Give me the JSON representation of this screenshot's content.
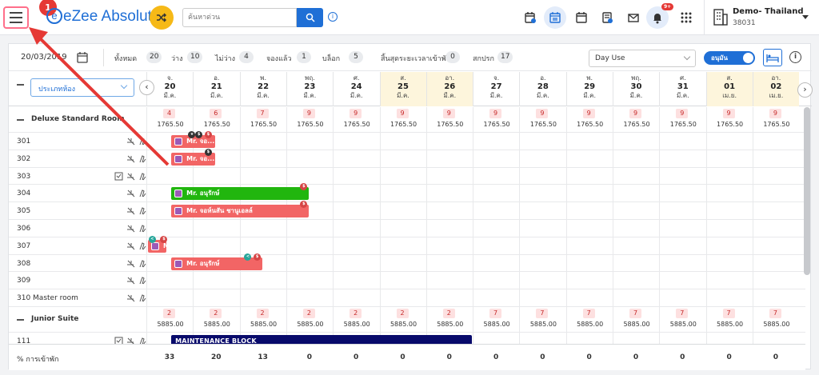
{
  "app": {
    "brand": "eZee Absolute",
    "search_placeholder": "ค้นหาด่วน",
    "step_badge": "1",
    "notif_count": "9+"
  },
  "hotel": {
    "name": "Demo- Thailand",
    "code": "38031"
  },
  "filters": {
    "date": "20/03/2019",
    "counts": [
      {
        "label": "ทั้งหมด",
        "value": "20"
      },
      {
        "label": "ว่าง",
        "value": "10"
      },
      {
        "label": "ไม่ว่าง",
        "value": "4"
      },
      {
        "label": "จองแล้ว",
        "value": "1"
      },
      {
        "label": "บล็อก",
        "value": "5"
      },
      {
        "label": "สิ้นสุดระยะเวลาเข้าพัก",
        "value": "0"
      },
      {
        "label": "สกปรก",
        "value": "17"
      }
    ],
    "day_use": "Day Use",
    "toggle_label": "อนุมัน"
  },
  "header": {
    "room_type_select": "ประเภทห้อง",
    "days": [
      {
        "dow": "จ.",
        "day": "20",
        "mon": "มี.ค.",
        "weekend": false
      },
      {
        "dow": "อ.",
        "day": "21",
        "mon": "มี.ค.",
        "weekend": false
      },
      {
        "dow": "พ.",
        "day": "22",
        "mon": "มี.ค.",
        "weekend": false
      },
      {
        "dow": "พฤ.",
        "day": "23",
        "mon": "มี.ค.",
        "weekend": false
      },
      {
        "dow": "ศ.",
        "day": "24",
        "mon": "มี.ค.",
        "weekend": false
      },
      {
        "dow": "ส.",
        "day": "25",
        "mon": "มี.ค.",
        "weekend": true
      },
      {
        "dow": "อา.",
        "day": "26",
        "mon": "มี.ค.",
        "weekend": true
      },
      {
        "dow": "จ.",
        "day": "27",
        "mon": "มี.ค.",
        "weekend": false
      },
      {
        "dow": "อ.",
        "day": "28",
        "mon": "มี.ค.",
        "weekend": false
      },
      {
        "dow": "พ.",
        "day": "29",
        "mon": "มี.ค.",
        "weekend": false
      },
      {
        "dow": "พฤ.",
        "day": "30",
        "mon": "มี.ค.",
        "weekend": false
      },
      {
        "dow": "ศ.",
        "day": "31",
        "mon": "มี.ค.",
        "weekend": false
      },
      {
        "dow": "ส.",
        "day": "01",
        "mon": "เม.ย.",
        "weekend": true
      },
      {
        "dow": "อา.",
        "day": "02",
        "mon": "เม.ย.",
        "weekend": true
      }
    ]
  },
  "categories": [
    {
      "name": "Deluxe Standard Room",
      "avail": [
        "4",
        "6",
        "7",
        "9",
        "9",
        "9",
        "9",
        "9",
        "9",
        "9",
        "9",
        "9",
        "9",
        "9"
      ],
      "prices": [
        "1765.50",
        "1765.50",
        "1765.50",
        "1765.50",
        "1765.50",
        "1765.50",
        "1765.50",
        "1765.50",
        "1765.50",
        "1765.50",
        "1765.50",
        "1765.50",
        "1765.50",
        "1765.50"
      ],
      "rooms": [
        "301",
        "302",
        "303",
        "304",
        "305",
        "306",
        "307",
        "308",
        "309",
        "310 Master room"
      ]
    },
    {
      "name": "Junior Suite",
      "avail": [
        "2",
        "2",
        "2",
        "2",
        "2",
        "2",
        "2",
        "7",
        "7",
        "7",
        "7",
        "7",
        "7",
        "7"
      ],
      "prices": [
        "5885.00",
        "5885.00",
        "5885.00",
        "5885.00",
        "5885.00",
        "5885.00",
        "5885.00",
        "5885.00",
        "5885.00",
        "5885.00",
        "5885.00",
        "5885.00",
        "5885.00",
        "5885.00"
      ],
      "rooms": [
        "111"
      ]
    }
  ],
  "bookings": [
    {
      "room": "301",
      "label": "Mr. จอ..."
    },
    {
      "room": "302",
      "label": "Mr. จอ..."
    },
    {
      "room": "304",
      "label": "Mr. อนุรักษ์"
    },
    {
      "room": "305",
      "label": "Mr. จอห์นสัน ชานูเอลล์"
    },
    {
      "room": "307",
      "label": "M"
    },
    {
      "room": "308",
      "label": "Mr. อนุรักษ์"
    },
    {
      "room": "111",
      "label": "MAINTENANCE BLOCK"
    }
  ],
  "occupancy": {
    "label": "% การเข้าพัก",
    "values": [
      "33",
      "20",
      "13",
      "0",
      "0",
      "0",
      "0",
      "0",
      "0",
      "0",
      "0",
      "0",
      "0",
      "0"
    ]
  },
  "colors": {
    "primary": "#1f6fd6",
    "booking_red": "#f26565",
    "booking_green": "#21b60e",
    "block_navy": "#080a6b",
    "weekend": "#fdf5dc",
    "annotation_red": "#e53935"
  }
}
